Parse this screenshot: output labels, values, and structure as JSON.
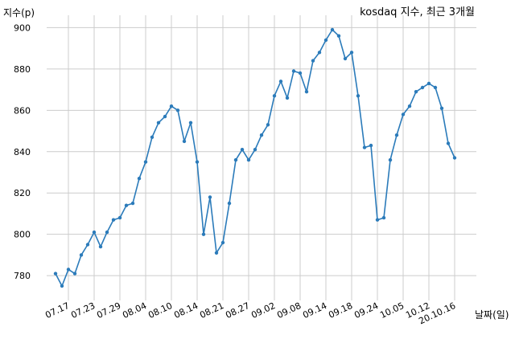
{
  "chart_data": {
    "type": "line",
    "title": "kosdaq 지수, 최근 3개월",
    "ylabel": "지수(p)",
    "xlabel": "날짜(일)",
    "ylim": [
      768,
      906
    ],
    "grid": true,
    "color": "#2b7bba",
    "yticks": [
      780,
      800,
      820,
      840,
      860,
      880,
      900
    ],
    "xtick_labels": [
      "07.17",
      "07.23",
      "07.29",
      "08.04",
      "08.10",
      "08.14",
      "08.21",
      "08.27",
      "09.02",
      "09.08",
      "09.14",
      "09.18",
      "09.24",
      "10.05",
      "10.12",
      "20.10.16"
    ],
    "xtick_indices": [
      2,
      6,
      10,
      14,
      18,
      22,
      26,
      30,
      34,
      38,
      42,
      46,
      50,
      54,
      58,
      62
    ],
    "values": [
      781,
      775,
      783,
      781,
      790,
      795,
      801,
      794,
      801,
      807,
      808,
      814,
      815,
      827,
      835,
      847,
      854,
      857,
      862,
      860,
      845,
      854,
      835,
      800,
      818,
      791,
      796,
      815,
      836,
      841,
      836,
      841,
      848,
      853,
      867,
      874,
      866,
      879,
      878,
      869,
      884,
      888,
      894,
      899,
      896,
      885,
      888,
      867,
      842,
      843,
      807,
      808,
      836,
      848,
      858,
      862,
      869,
      871,
      873,
      871,
      861,
      844,
      837
    ]
  }
}
